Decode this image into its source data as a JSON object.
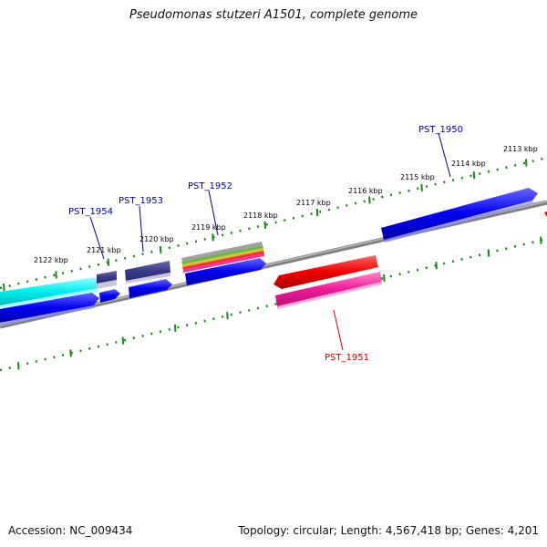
{
  "title": "Pseudomonas stutzeri A1501, complete genome",
  "accession_text": "Accession: NC_009434",
  "topology_text": "Topology: circular; Length: 4,567,418 bp; Genes: 4,201",
  "colors": {
    "ruler": "#1a8a1a",
    "backbone": "#808080",
    "gene_blue": "#0000ee",
    "gene_cyan": "#00eeee",
    "gene_navy": "#3a3a8a",
    "gene_red": "#ee0000",
    "gene_pink": "#ee1a99",
    "label_blue": "#000099",
    "label_red": "#cc0000"
  },
  "kbp_labels": [
    "2113 kbp",
    "2114 kbp",
    "2115 kbp",
    "2116 kbp",
    "2117 kbp",
    "2118 kbp",
    "2119 kbp",
    "2120 kbp",
    "2121 kbp",
    "2122 kbp"
  ],
  "genes": [
    {
      "id": "PST_1950",
      "color": "blue"
    },
    {
      "id": "PST_1951",
      "color": "red"
    },
    {
      "id": "PST_1952",
      "color": "blue"
    },
    {
      "id": "PST_1953",
      "color": "blue"
    },
    {
      "id": "PST_1954",
      "color": "blue"
    }
  ]
}
